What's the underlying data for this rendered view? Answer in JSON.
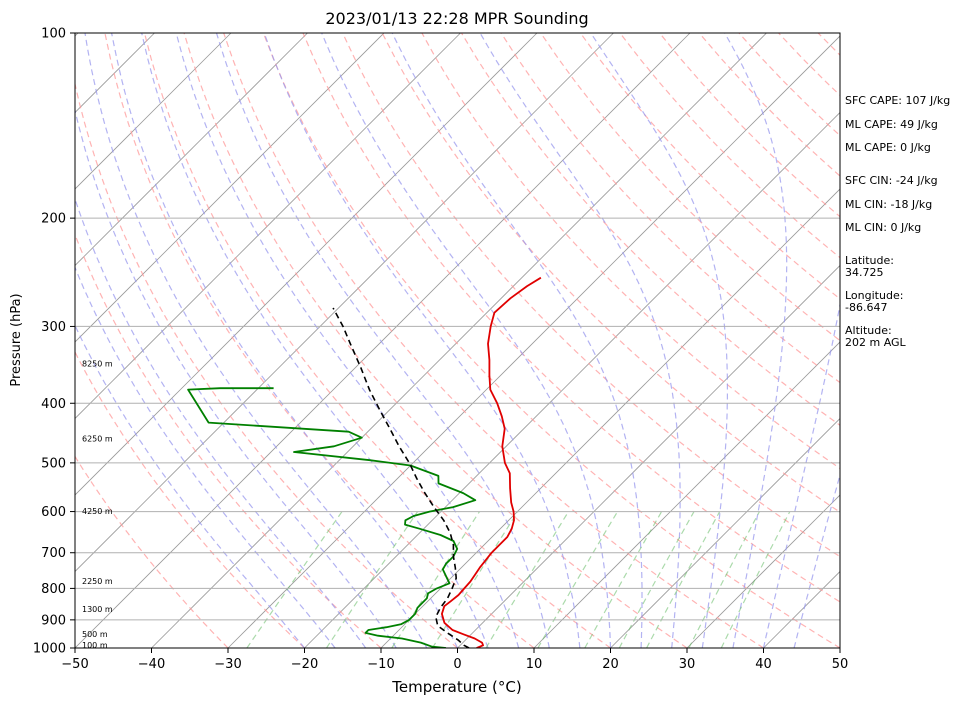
{
  "chart_data": {
    "type": "line",
    "subtype": "skew-t log-p sounding",
    "title": "2023/01/13 22:28 MPR Sounding",
    "xlabel": "Temperature (°C)",
    "ylabel": "Pressure (hPa)",
    "xlim": [
      -50,
      50
    ],
    "ylim": [
      1000,
      100
    ],
    "y_scale": "log",
    "x_ticks": [
      -50,
      -40,
      -30,
      -20,
      -10,
      0,
      10,
      20,
      30,
      40,
      50
    ],
    "y_ticks": [
      100,
      200,
      300,
      400,
      500,
      600,
      700,
      800,
      900,
      1000
    ],
    "grid": true,
    "colors": {
      "temperature": "#e00000",
      "dewpoint": "#008000",
      "parcel": "#000000",
      "dry_adiabats": "#ff9999",
      "moist_adiabats": "#9999ee",
      "mixing_ratio": "#66bb66",
      "isotherms": "#999999"
    },
    "height_labels": [
      {
        "pressure": 345,
        "text": "8250 m"
      },
      {
        "pressure": 457,
        "text": "6250 m"
      },
      {
        "pressure": 600,
        "text": "4250 m"
      },
      {
        "pressure": 780,
        "text": "2250 m"
      },
      {
        "pressure": 865,
        "text": "1300 m"
      },
      {
        "pressure": 950,
        "text": "500 m"
      },
      {
        "pressure": 990,
        "text": "100 m"
      }
    ],
    "series": [
      {
        "key": "temperature",
        "points": [
          [
            1000,
            2.5
          ],
          [
            990,
            3.0
          ],
          [
            980,
            2.5
          ],
          [
            965,
            1.0
          ],
          [
            950,
            -1.0
          ],
          [
            935,
            -3.0
          ],
          [
            910,
            -5.0
          ],
          [
            880,
            -6.5
          ],
          [
            855,
            -7.2
          ],
          [
            840,
            -7.0
          ],
          [
            820,
            -6.8
          ],
          [
            800,
            -6.9
          ],
          [
            780,
            -7.0
          ],
          [
            760,
            -7.3
          ],
          [
            740,
            -7.6
          ],
          [
            720,
            -7.8
          ],
          [
            700,
            -8.0
          ],
          [
            680,
            -8.0
          ],
          [
            660,
            -8.0
          ],
          [
            640,
            -8.5
          ],
          [
            620,
            -9.3
          ],
          [
            600,
            -10.5
          ],
          [
            580,
            -12.0
          ],
          [
            550,
            -14.0
          ],
          [
            520,
            -16.0
          ],
          [
            500,
            -18.0
          ],
          [
            470,
            -20.5
          ],
          [
            440,
            -22.5
          ],
          [
            420,
            -24.5
          ],
          [
            400,
            -26.8
          ],
          [
            380,
            -29.5
          ],
          [
            360,
            -31.5
          ],
          [
            340,
            -33.5
          ],
          [
            320,
            -35.8
          ],
          [
            300,
            -37.7
          ],
          [
            285,
            -39.0
          ],
          [
            270,
            -38.8
          ],
          [
            258,
            -38.2
          ],
          [
            250,
            -37.5
          ]
        ]
      },
      {
        "key": "dewpoint",
        "points": [
          [
            1000,
            -1.5
          ],
          [
            995,
            -3.5
          ],
          [
            980,
            -5.5
          ],
          [
            965,
            -8.5
          ],
          [
            955,
            -12.0
          ],
          [
            945,
            -14.0
          ],
          [
            935,
            -14.0
          ],
          [
            925,
            -12.0
          ],
          [
            915,
            -10.5
          ],
          [
            900,
            -10.0
          ],
          [
            880,
            -10.0
          ],
          [
            860,
            -10.5
          ],
          [
            845,
            -10.5
          ],
          [
            830,
            -10.5
          ],
          [
            815,
            -11.0
          ],
          [
            800,
            -10.5
          ],
          [
            785,
            -9.5
          ],
          [
            770,
            -10.5
          ],
          [
            745,
            -12.2
          ],
          [
            730,
            -12.5
          ],
          [
            710,
            -12.5
          ],
          [
            690,
            -13.0
          ],
          [
            670,
            -14.5
          ],
          [
            655,
            -17.0
          ],
          [
            640,
            -20.5
          ],
          [
            630,
            -23.0
          ],
          [
            620,
            -23.5
          ],
          [
            610,
            -23.0
          ],
          [
            600,
            -21.5
          ],
          [
            590,
            -19.0
          ],
          [
            575,
            -17.0
          ],
          [
            560,
            -19.5
          ],
          [
            540,
            -24.0
          ],
          [
            525,
            -25.0
          ],
          [
            505,
            -30.0
          ],
          [
            495,
            -36.0
          ],
          [
            480,
            -47.0
          ],
          [
            470,
            -42.5
          ],
          [
            455,
            -40.0
          ],
          [
            445,
            -42.5
          ],
          [
            430,
            -62.0
          ],
          [
            380,
            -69.0
          ],
          [
            378,
            -65.0
          ],
          [
            378,
            -58.0
          ]
        ]
      },
      {
        "key": "parcel",
        "points": [
          [
            1000,
            1.5
          ],
          [
            990,
            0.5
          ],
          [
            970,
            -1.0
          ],
          [
            945,
            -3.3
          ],
          [
            920,
            -5.5
          ],
          [
            890,
            -6.9
          ],
          [
            860,
            -7.5
          ],
          [
            830,
            -7.8
          ],
          [
            800,
            -8.5
          ],
          [
            770,
            -9.3
          ],
          [
            740,
            -10.8
          ],
          [
            710,
            -12.5
          ],
          [
            680,
            -14.0
          ],
          [
            650,
            -16.0
          ],
          [
            620,
            -18.5
          ],
          [
            590,
            -21.5
          ],
          [
            560,
            -24.5
          ],
          [
            530,
            -27.5
          ],
          [
            500,
            -30.5
          ],
          [
            470,
            -34.0
          ],
          [
            440,
            -37.5
          ],
          [
            410,
            -41.3
          ],
          [
            380,
            -45.3
          ],
          [
            350,
            -49.3
          ],
          [
            320,
            -53.8
          ],
          [
            300,
            -57.0
          ],
          [
            280,
            -60.7
          ]
        ]
      }
    ]
  },
  "stats": [
    "SFC CAPE: 107 J/kg",
    "ML CAPE: 49 J/kg",
    "ML CAPE: 0 J/kg",
    "SFC CIN: -24 J/kg",
    "ML CIN: -18 J/kg",
    "ML CIN: 0 J/kg"
  ],
  "location": [
    {
      "label": "Latitude:",
      "value": "34.725"
    },
    {
      "label": "Longitude:",
      "value": "-86.647"
    },
    {
      "label": "Altitude:",
      "value": "202 m AGL"
    }
  ]
}
